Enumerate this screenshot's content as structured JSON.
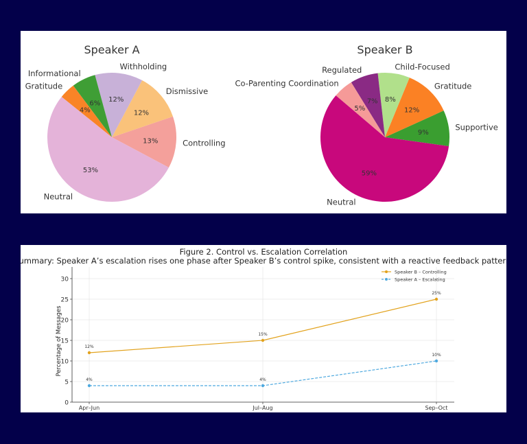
{
  "chart_data": [
    {
      "type": "pie",
      "title": "Speaker A",
      "categories": [
        "Controlling",
        "Dismissive",
        "Withholding",
        "Informational",
        "Gratitude",
        "Neutral"
      ],
      "values": [
        13,
        12,
        12,
        6,
        4,
        53
      ],
      "labels": [
        "13%",
        "12%",
        "12%",
        "6%",
        "4%",
        "53%"
      ],
      "colors": [
        "#f4a09b",
        "#fac27a",
        "#c8b1d8",
        "#3f9e35",
        "#f98427",
        "#e4b3d9"
      ],
      "direction": "counterclockwise"
    },
    {
      "type": "pie",
      "title": "Speaker B",
      "categories": [
        "Supportive",
        "Gratitude",
        "Child-Focused",
        "Regulated",
        "Co-Parenting Coordination",
        "Neutral"
      ],
      "values": [
        9,
        12,
        8,
        7,
        5,
        59
      ],
      "labels": [
        "9%",
        "12%",
        "8%",
        "7%",
        "5%",
        "59%"
      ],
      "colors": [
        "#3a9e30",
        "#fb8124",
        "#b1e08b",
        "#8a2a84",
        "#f59a98",
        "#c8087c"
      ],
      "direction": "counterclockwise"
    },
    {
      "type": "line",
      "title": "Figure 2. Control vs. Escalation Correlation",
      "subtitle": "Summary: Speaker A’s escalation rises one phase after Speaker B’s control spike, consistent with a reactive feedback pattern.",
      "xlabel": "",
      "ylabel": "Percentage of Messages",
      "categories": [
        "Apr–Jun",
        "Jul–Aug",
        "Sep–Oct"
      ],
      "ylim": [
        0,
        32
      ],
      "yticks": [
        0,
        5,
        10,
        15,
        20,
        25,
        30
      ],
      "grid": true,
      "legend_position": "top-right",
      "series": [
        {
          "name": "Speaker B – Controlling",
          "values": [
            12,
            15,
            25
          ],
          "labels": [
            "12%",
            "15%",
            "25%"
          ],
          "color": "#e2a21c",
          "style": "solid"
        },
        {
          "name": "Speaker A – Escalating",
          "values": [
            4,
            4,
            10
          ],
          "labels": [
            "4%",
            "4%",
            "10%"
          ],
          "color": "#4ea9df",
          "style": "dashed"
        }
      ]
    }
  ]
}
